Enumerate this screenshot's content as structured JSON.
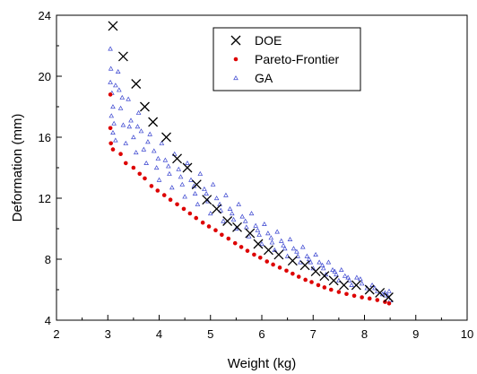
{
  "chart_data": {
    "type": "scatter",
    "xlabel": "Weight (kg)",
    "ylabel": "Deformation (mm)",
    "xlim": [
      2,
      10
    ],
    "ylim": [
      4,
      24
    ],
    "xticks": [
      "2",
      "3",
      "4",
      "5",
      "6",
      "7",
      "8",
      "9",
      "10"
    ],
    "yticks": [
      "4",
      "8",
      "12",
      "16",
      "20",
      "24"
    ],
    "legend_position": "top-center",
    "series": [
      {
        "name": "DOE",
        "marker": "x",
        "color": "#000000",
        "points": [
          [
            3.1,
            23.3
          ],
          [
            3.3,
            21.3
          ],
          [
            3.55,
            19.5
          ],
          [
            3.72,
            18.0
          ],
          [
            3.88,
            17.0
          ],
          [
            4.14,
            16.0
          ],
          [
            4.35,
            14.6
          ],
          [
            4.55,
            14.0
          ],
          [
            4.73,
            12.9
          ],
          [
            4.93,
            11.9
          ],
          [
            5.12,
            11.3
          ],
          [
            5.33,
            10.5
          ],
          [
            5.52,
            10.1
          ],
          [
            5.77,
            9.7
          ],
          [
            5.93,
            9.0
          ],
          [
            6.13,
            8.6
          ],
          [
            6.33,
            8.3
          ],
          [
            6.6,
            7.9
          ],
          [
            6.84,
            7.6
          ],
          [
            7.05,
            7.2
          ],
          [
            7.22,
            6.9
          ],
          [
            7.4,
            6.6
          ],
          [
            7.6,
            6.3
          ],
          [
            7.84,
            6.3
          ],
          [
            8.1,
            6.0
          ],
          [
            8.3,
            5.8
          ],
          [
            8.47,
            5.5
          ]
        ]
      },
      {
        "name": "Pareto-Frontier",
        "marker": "dot",
        "color": "#dd0000",
        "points": [
          [
            3.05,
            18.8
          ],
          [
            3.05,
            16.6
          ],
          [
            3.06,
            15.6
          ],
          [
            3.1,
            15.2
          ],
          [
            3.25,
            14.9
          ],
          [
            3.35,
            14.3
          ],
          [
            3.5,
            14.0
          ],
          [
            3.62,
            13.6
          ],
          [
            3.72,
            13.3
          ],
          [
            3.85,
            12.8
          ],
          [
            3.97,
            12.5
          ],
          [
            4.1,
            12.2
          ],
          [
            4.22,
            11.9
          ],
          [
            4.35,
            11.6
          ],
          [
            4.48,
            11.3
          ],
          [
            4.6,
            11.0
          ],
          [
            4.72,
            10.7
          ],
          [
            4.85,
            10.4
          ],
          [
            4.97,
            10.15
          ],
          [
            5.1,
            9.9
          ],
          [
            5.22,
            9.6
          ],
          [
            5.35,
            9.35
          ],
          [
            5.48,
            9.05
          ],
          [
            5.6,
            8.8
          ],
          [
            5.72,
            8.55
          ],
          [
            5.85,
            8.3
          ],
          [
            5.97,
            8.1
          ],
          [
            6.1,
            7.85
          ],
          [
            6.22,
            7.65
          ],
          [
            6.35,
            7.45
          ],
          [
            6.48,
            7.25
          ],
          [
            6.6,
            7.05
          ],
          [
            6.72,
            6.85
          ],
          [
            6.85,
            6.65
          ],
          [
            6.97,
            6.5
          ],
          [
            7.1,
            6.3
          ],
          [
            7.22,
            6.15
          ],
          [
            7.35,
            6.0
          ],
          [
            7.5,
            5.85
          ],
          [
            7.65,
            5.72
          ],
          [
            7.8,
            5.6
          ],
          [
            7.95,
            5.5
          ],
          [
            8.1,
            5.42
          ],
          [
            8.25,
            5.32
          ],
          [
            8.4,
            5.2
          ],
          [
            8.48,
            5.1
          ]
        ]
      },
      {
        "name": "GA",
        "marker": "triangle",
        "color": "#3a45d0",
        "points": [
          [
            3.05,
            21.8
          ],
          [
            3.06,
            20.5
          ],
          [
            3.05,
            19.6
          ],
          [
            3.08,
            18.9
          ],
          [
            3.1,
            18.0
          ],
          [
            3.07,
            17.4
          ],
          [
            3.12,
            16.9
          ],
          [
            3.1,
            16.3
          ],
          [
            3.15,
            15.8
          ],
          [
            3.2,
            20.3
          ],
          [
            3.22,
            19.1
          ],
          [
            3.25,
            17.9
          ],
          [
            3.3,
            16.8
          ],
          [
            3.35,
            15.6
          ],
          [
            3.4,
            18.5
          ],
          [
            3.45,
            17.1
          ],
          [
            3.5,
            16.0
          ],
          [
            3.55,
            15.0
          ],
          [
            3.6,
            17.6
          ],
          [
            3.65,
            16.4
          ],
          [
            3.7,
            15.2
          ],
          [
            3.75,
            14.3
          ],
          [
            3.82,
            16.2
          ],
          [
            3.9,
            15.1
          ],
          [
            3.95,
            14.0
          ],
          [
            4.0,
            13.2
          ],
          [
            4.05,
            15.6
          ],
          [
            4.12,
            14.5
          ],
          [
            4.2,
            13.6
          ],
          [
            4.25,
            12.7
          ],
          [
            4.3,
            14.9
          ],
          [
            4.38,
            13.9
          ],
          [
            4.45,
            12.9
          ],
          [
            4.5,
            12.1
          ],
          [
            4.55,
            14.3
          ],
          [
            4.62,
            13.2
          ],
          [
            4.7,
            12.3
          ],
          [
            4.75,
            11.6
          ],
          [
            4.8,
            13.6
          ],
          [
            4.88,
            12.6
          ],
          [
            4.95,
            11.8
          ],
          [
            5.0,
            11.0
          ],
          [
            5.05,
            12.9
          ],
          [
            5.12,
            12.0
          ],
          [
            5.2,
            11.2
          ],
          [
            5.25,
            10.5
          ],
          [
            5.3,
            12.2
          ],
          [
            5.38,
            11.3
          ],
          [
            5.45,
            10.6
          ],
          [
            5.5,
            10.0
          ],
          [
            5.55,
            11.6
          ],
          [
            5.62,
            10.8
          ],
          [
            5.7,
            10.1
          ],
          [
            5.75,
            9.5
          ],
          [
            5.8,
            11.0
          ],
          [
            5.88,
            10.2
          ],
          [
            5.95,
            9.6
          ],
          [
            6.0,
            9.0
          ],
          [
            6.05,
            10.3
          ],
          [
            6.12,
            9.7
          ],
          [
            6.2,
            9.1
          ],
          [
            6.25,
            8.6
          ],
          [
            6.3,
            9.8
          ],
          [
            6.38,
            9.2
          ],
          [
            6.45,
            8.7
          ],
          [
            6.5,
            8.2
          ],
          [
            6.55,
            9.3
          ],
          [
            6.62,
            8.7
          ],
          [
            6.7,
            8.2
          ],
          [
            6.75,
            7.8
          ],
          [
            6.8,
            8.8
          ],
          [
            6.88,
            8.2
          ],
          [
            6.95,
            7.8
          ],
          [
            7.0,
            7.4
          ],
          [
            7.05,
            8.3
          ],
          [
            7.12,
            7.8
          ],
          [
            7.2,
            7.4
          ],
          [
            7.25,
            7.0
          ],
          [
            7.3,
            7.8
          ],
          [
            7.38,
            7.3
          ],
          [
            7.45,
            7.0
          ],
          [
            7.5,
            6.6
          ],
          [
            7.55,
            7.3
          ],
          [
            7.62,
            6.9
          ],
          [
            7.7,
            6.6
          ],
          [
            7.75,
            6.3
          ],
          [
            7.85,
            6.8
          ],
          [
            7.95,
            6.4
          ],
          [
            8.05,
            6.1
          ],
          [
            8.15,
            6.3
          ],
          [
            8.25,
            5.9
          ],
          [
            8.35,
            5.7
          ],
          [
            8.45,
            5.6
          ],
          [
            8.48,
            5.9
          ],
          [
            8.5,
            5.3
          ],
          [
            3.15,
            19.4
          ],
          [
            3.28,
            18.6
          ],
          [
            3.42,
            16.7
          ],
          [
            3.58,
            16.7
          ],
          [
            3.78,
            15.7
          ],
          [
            3.98,
            14.6
          ],
          [
            4.18,
            14.1
          ],
          [
            4.42,
            13.4
          ],
          [
            4.68,
            12.8
          ],
          [
            4.92,
            12.3
          ],
          [
            5.18,
            11.6
          ],
          [
            5.42,
            11.0
          ],
          [
            5.68,
            10.5
          ],
          [
            5.92,
            9.9
          ],
          [
            6.18,
            9.4
          ],
          [
            6.42,
            8.9
          ],
          [
            6.68,
            8.5
          ],
          [
            6.92,
            8.0
          ],
          [
            7.18,
            7.6
          ],
          [
            7.42,
            7.2
          ],
          [
            7.68,
            6.8
          ],
          [
            7.92,
            6.7
          ],
          [
            8.2,
            6.1
          ],
          [
            8.4,
            5.8
          ]
        ]
      }
    ]
  }
}
